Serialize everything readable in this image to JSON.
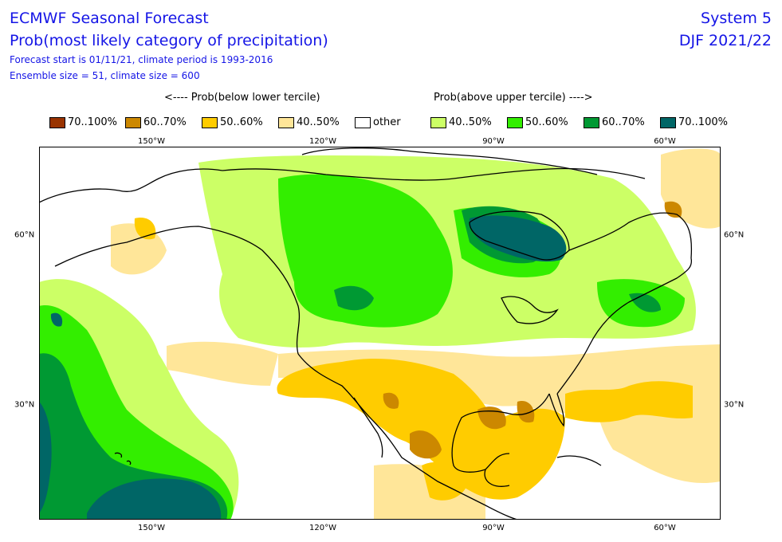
{
  "header": {
    "title": "ECMWF Seasonal Forecast",
    "subtitle": "Prob(most likely category of precipitation)",
    "forecast_info": "Forecast start is 01/11/21, climate period is 1993-2016",
    "ensemble_info": "Ensemble size = 51, climate size = 600",
    "system": "System 5",
    "season": "DJF 2021/22"
  },
  "legend": {
    "below_header": "<---- Prob(below lower tercile)",
    "above_header": "Prob(above upper tercile) ---->",
    "items": [
      {
        "label": "70..100%",
        "color": "#993300"
      },
      {
        "label": "60..70%",
        "color": "#cc8800"
      },
      {
        "label": "50..60%",
        "color": "#ffcc00"
      },
      {
        "label": "40..50%",
        "color": "#ffe699"
      },
      {
        "label": "other",
        "color": "#ffffff"
      },
      {
        "label": "40..50%",
        "color": "#ccff66"
      },
      {
        "label": "50..60%",
        "color": "#33ee00"
      },
      {
        "label": "60..70%",
        "color": "#009933"
      },
      {
        "label": "70..100%",
        "color": "#006666"
      }
    ]
  },
  "axes": {
    "lon_labels": [
      "150°W",
      "120°W",
      "90°W",
      "60°W"
    ],
    "lat_labels": [
      "60°N",
      "30°N"
    ]
  }
}
